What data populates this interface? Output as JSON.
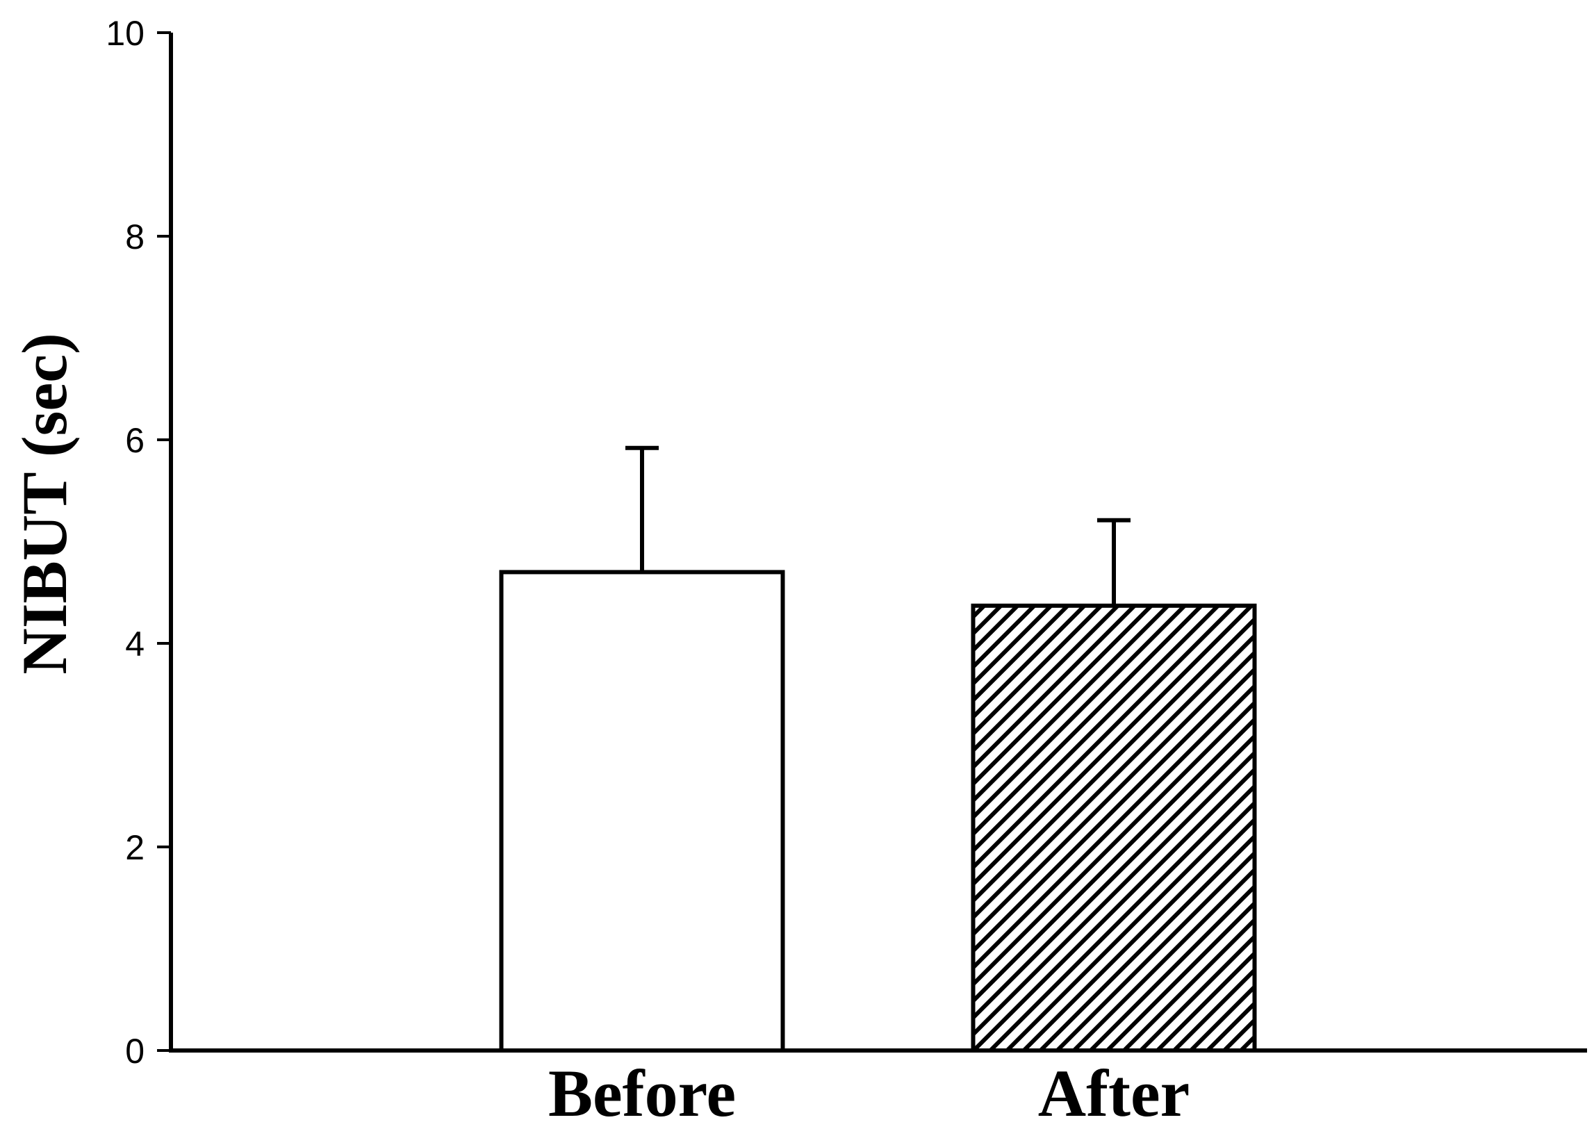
{
  "chart_data": {
    "type": "bar",
    "title": "",
    "xlabel": "",
    "ylabel": "NIBUT (sec)",
    "ylim": [
      0,
      10
    ],
    "yticks": [
      0,
      2,
      4,
      6,
      8,
      10
    ],
    "grid": false,
    "legend": "none",
    "categories": [
      "Before",
      "After"
    ],
    "values": [
      4.7,
      4.37
    ],
    "error_upper": [
      5.92,
      5.21
    ],
    "bar_styles": [
      "solid-white",
      "diagonal-hatch"
    ],
    "colors": {
      "stroke": "#000000",
      "fill": "#ffffff"
    }
  }
}
